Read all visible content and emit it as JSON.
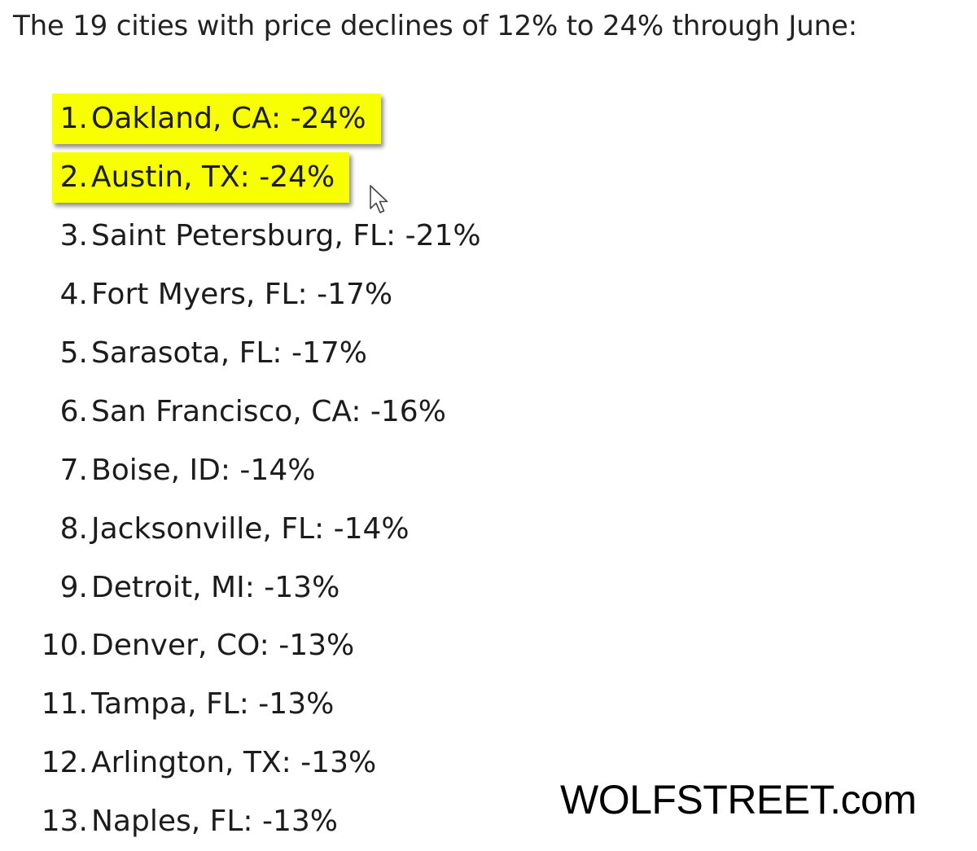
{
  "headline": "The 19 cities with price declines of 12% to 24% through June:",
  "items": [
    {
      "rank": "1.",
      "city": "Oakland, CA: -24%",
      "highlighted": true
    },
    {
      "rank": "2.",
      "city": "Austin, TX: -24%",
      "highlighted": true
    },
    {
      "rank": "3.",
      "city": "Saint Petersburg, FL: -21%",
      "highlighted": false
    },
    {
      "rank": "4.",
      "city": "Fort Myers, FL: -17%",
      "highlighted": false
    },
    {
      "rank": "5.",
      "city": "Sarasota, FL: -17%",
      "highlighted": false
    },
    {
      "rank": "6.",
      "city": "San Francisco, CA: -16%",
      "highlighted": false
    },
    {
      "rank": "7.",
      "city": "Boise, ID: -14%",
      "highlighted": false
    },
    {
      "rank": "8.",
      "city": "Jacksonville, FL: -14%",
      "highlighted": false
    },
    {
      "rank": "9.",
      "city": "Detroit, MI: -13%",
      "highlighted": false
    },
    {
      "rank": "10.",
      "city": "Denver, CO: -13%",
      "highlighted": false
    },
    {
      "rank": "11.",
      "city": "Tampa, FL: -13%",
      "highlighted": false
    },
    {
      "rank": "12.",
      "city": "Arlington, TX: -13%",
      "highlighted": false
    },
    {
      "rank": "13.",
      "city": "Naples, FL: -13%",
      "highlighted": false
    }
  ],
  "watermark": "WOLFSTREET.com",
  "colors": {
    "highlight": "#f8ff00",
    "text": "#1c1c1c"
  },
  "icons": {
    "cursor": "mouse-pointer-icon"
  }
}
